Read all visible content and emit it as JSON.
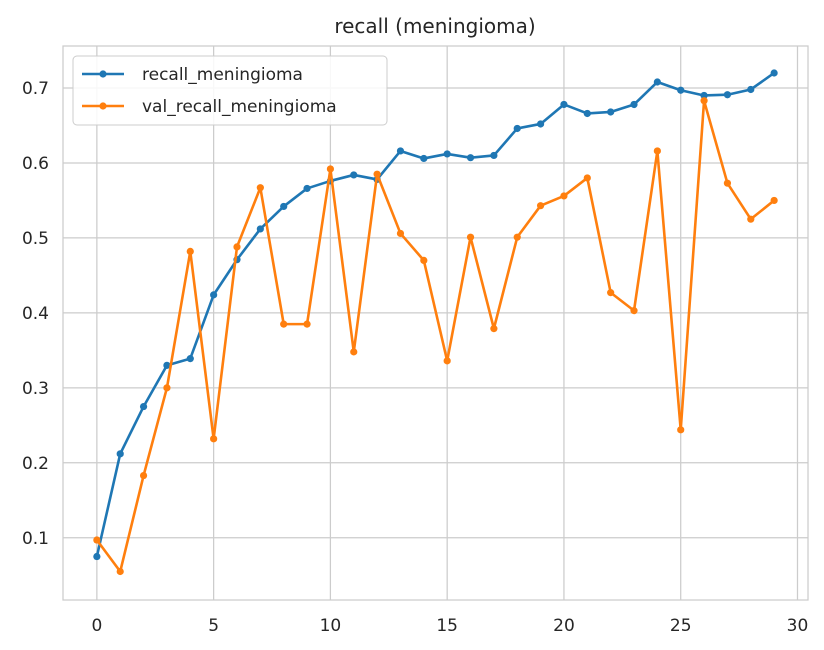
{
  "chart_data": {
    "type": "line",
    "title": "recall (meningioma)",
    "xlabel": "",
    "ylabel": "",
    "xlim": [
      -1.45,
      30.45
    ],
    "ylim": [
      0.017,
      0.756
    ],
    "xticks": [
      0,
      5,
      10,
      15,
      20,
      25,
      30
    ],
    "yticks": [
      0.1,
      0.2,
      0.3,
      0.4,
      0.5,
      0.6,
      0.7
    ],
    "grid": true,
    "legend_position": "upper-left",
    "x": [
      0,
      1,
      2,
      3,
      4,
      5,
      6,
      7,
      8,
      9,
      10,
      11,
      12,
      13,
      14,
      15,
      16,
      17,
      18,
      19,
      20,
      21,
      22,
      23,
      24,
      25,
      26,
      27,
      28,
      29
    ],
    "series": [
      {
        "name": "recall_meningioma",
        "color": "#1f77b4",
        "values": [
          0.075,
          0.212,
          0.275,
          0.33,
          0.339,
          0.424,
          0.471,
          0.512,
          0.542,
          0.566,
          0.576,
          0.584,
          0.578,
          0.616,
          0.606,
          0.612,
          0.607,
          0.61,
          0.646,
          0.652,
          0.678,
          0.666,
          0.668,
          0.678,
          0.708,
          0.697,
          0.69,
          0.691,
          0.698,
          0.72
        ]
      },
      {
        "name": "val_recall_meningioma",
        "color": "#ff7f0e",
        "values": [
          0.097,
          0.055,
          0.183,
          0.3,
          0.482,
          0.232,
          0.488,
          0.567,
          0.385,
          0.385,
          0.592,
          0.348,
          0.585,
          0.506,
          0.47,
          0.336,
          0.501,
          0.379,
          0.501,
          0.543,
          0.556,
          0.58,
          0.427,
          0.403,
          0.616,
          0.244,
          0.683,
          0.573,
          0.525,
          0.55
        ]
      }
    ]
  }
}
